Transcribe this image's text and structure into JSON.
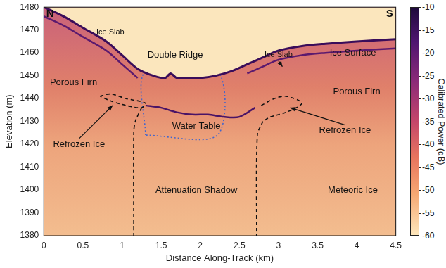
{
  "chart_data": {
    "type": "line",
    "xlabel": "Distance Along-Track (km)",
    "ylabel": "Elevation (m)",
    "xlim": [
      0,
      4.5
    ],
    "xticks": [
      0,
      0.5,
      1,
      1.5,
      2,
      2.5,
      3,
      3.5,
      4,
      4.5
    ],
    "ylim": [
      1380,
      1480
    ],
    "yticks": [
      1380,
      1390,
      1400,
      1410,
      1420,
      1430,
      1440,
      1450,
      1460,
      1470,
      1480
    ],
    "grid": false,
    "colorbar": {
      "label": "Calibrated Power (dB)",
      "range": [
        -60,
        -10
      ],
      "ticks": [
        -60,
        -55,
        -50,
        -45,
        -40,
        -35,
        -30,
        -25,
        -20,
        -15,
        -10
      ]
    },
    "series": [
      {
        "name": "Ice Surface",
        "color": "#3a0d5a",
        "line_style": "solid",
        "x": [
          0,
          0.25,
          0.5,
          0.8,
          1.0,
          1.2,
          1.4,
          1.55,
          1.62,
          1.7,
          1.8,
          2.0,
          2.2,
          2.4,
          2.6,
          2.8,
          3.0,
          3.3,
          3.6,
          4.0,
          4.5
        ],
        "values": [
          1480,
          1476,
          1471,
          1465,
          1459,
          1453,
          1450,
          1449,
          1451,
          1449,
          1449,
          1449,
          1450,
          1452,
          1455,
          1458,
          1461,
          1463,
          1464,
          1465,
          1466
        ]
      },
      {
        "name": "Ice Slab",
        "color": "#5c1a6e",
        "line_style": "solid",
        "x": [
          0,
          0.25,
          0.5,
          0.8,
          1.0,
          1.2
        ],
        "values": [
          1476,
          1472,
          1467,
          1461,
          1455,
          1449
        ]
      },
      {
        "name": "Ice Slab",
        "color": "#5c1a6e",
        "line_style": "solid",
        "x": [
          2.6,
          2.8,
          3.0,
          3.3,
          3.6,
          4.0,
          4.5
        ],
        "values": [
          1451,
          1454,
          1457,
          1459,
          1460,
          1461,
          1462
        ]
      },
      {
        "name": "Water Table",
        "color": "#4a1466",
        "line_style": "solid",
        "x": [
          1.3,
          1.5,
          1.7,
          1.9,
          2.1,
          2.3,
          2.5,
          2.7
        ],
        "values": [
          1437,
          1436,
          1434,
          1433,
          1433,
          1432,
          1432,
          1436
        ]
      },
      {
        "name": "Refrozen Ice",
        "color": "#111111",
        "line_style": "dashed",
        "x": [
          0.72,
          0.85,
          1.05,
          1.3,
          1.25,
          1.05,
          0.85,
          0.72
        ],
        "values": [
          1441,
          1442,
          1440,
          1438,
          1436,
          1437,
          1439,
          1441
        ]
      },
      {
        "name": "Refrozen Ice",
        "color": "#111111",
        "line_style": "dashed",
        "x": [
          2.78,
          2.95,
          3.1,
          3.3,
          3.1,
          2.9,
          2.8
        ],
        "values": [
          1437,
          1440,
          1441,
          1438,
          1434,
          1432,
          1430
        ]
      },
      {
        "name": "Attenuation Shadow",
        "color": "#111111",
        "line_style": "dashed",
        "x": [
          1.25,
          1.17,
          1.15,
          1.15
        ],
        "values": [
          1436,
          1430,
          1425,
          1380
        ]
      },
      {
        "name": "Attenuation Shadow",
        "color": "#111111",
        "line_style": "dashed",
        "x": [
          2.8,
          2.73,
          2.72
        ],
        "values": [
          1430,
          1424,
          1380
        ]
      },
      {
        "name": "Double Ridge",
        "color": "#4466cc",
        "line_style": "dotted",
        "x": [
          1.3,
          1.3,
          2.22,
          2.22,
          1.3
        ],
        "values": [
          1424,
          1452,
          1452,
          1424,
          1424
        ]
      }
    ],
    "annotations": [
      {
        "text": "N",
        "x": 0.08,
        "y": 1477
      },
      {
        "text": "S",
        "x": 4.42,
        "y": 1477
      },
      {
        "text": "Ice Slab",
        "x": 0.85,
        "y": 1469
      },
      {
        "text": "Ice Slab",
        "x": 3.0,
        "y": 1459,
        "arrow_to": [
          3.05,
          1454
        ]
      },
      {
        "text": "Double Ridge",
        "x": 1.68,
        "y": 1459
      },
      {
        "text": "Ice Surface",
        "x": 3.95,
        "y": 1460
      },
      {
        "text": "Porous Firn",
        "x": 0.38,
        "y": 1447
      },
      {
        "text": "Porous Firn",
        "x": 4.0,
        "y": 1443
      },
      {
        "text": "Water Table",
        "x": 1.95,
        "y": 1428
      },
      {
        "text": "Refrozen Ice",
        "x": 0.45,
        "y": 1420,
        "arrow_to": [
          0.88,
          1437
        ]
      },
      {
        "text": "Refrozen Ice",
        "x": 3.85,
        "y": 1426,
        "arrow_to": [
          3.15,
          1436
        ]
      },
      {
        "text": "Attenuation Shadow",
        "x": 1.95,
        "y": 1400
      },
      {
        "text": "Meteoric Ice",
        "x": 3.95,
        "y": 1400
      }
    ]
  }
}
